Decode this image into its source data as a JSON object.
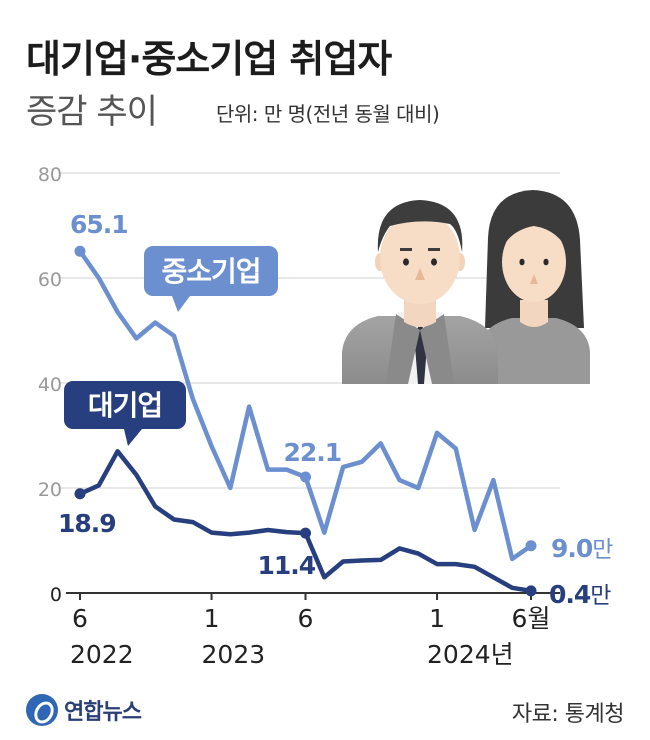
{
  "title_line1": "대기업·중소기업 취업자",
  "title_line2": "증감 추이",
  "unit": "단위: 만 명(전년 동월 대비)",
  "source": "자료: 통계청",
  "logo": "연합뉴스",
  "colors": {
    "sme": "#6b8fcf",
    "large": "#273f7e",
    "axis": "#333333",
    "grid": "#d0d0d0"
  },
  "chart_data": {
    "type": "line",
    "ylim": [
      0,
      80
    ],
    "yticks": [
      0,
      20,
      40,
      60,
      80
    ],
    "x_tick_labels": [
      {
        "index": 0,
        "month": "6",
        "year": "2022"
      },
      {
        "index": 7,
        "month": "1",
        "year": "2023"
      },
      {
        "index": 12,
        "month": "6",
        "year": ""
      },
      {
        "index": 19,
        "month": "1",
        "year": "2024년"
      },
      {
        "index": 24,
        "month": "6월",
        "year": ""
      }
    ],
    "series": [
      {
        "name": "중소기업",
        "color": "#6b8fcf",
        "values": [
          65.1,
          60,
          53.5,
          48.5,
          51.5,
          49,
          37,
          28,
          20,
          35.5,
          23.5,
          23.5,
          22.1,
          11.5,
          24,
          25,
          28.5,
          21.5,
          20,
          30.5,
          27.5,
          12,
          21.5,
          6.5,
          9.0
        ],
        "labels": [
          {
            "index": 0,
            "text": "65.1"
          },
          {
            "index": 12,
            "text": "22.1"
          },
          {
            "index": 24,
            "text": "9.0만"
          }
        ],
        "callout": "중소기업"
      },
      {
        "name": "대기업",
        "color": "#273f7e",
        "values": [
          18.9,
          20.5,
          27,
          22.5,
          16.5,
          14,
          13.5,
          11.5,
          11.2,
          11.5,
          12,
          11.6,
          11.4,
          3,
          6,
          6.2,
          6.3,
          8.5,
          7.5,
          5.5,
          5.5,
          5,
          3,
          1,
          0.4
        ],
        "labels": [
          {
            "index": 0,
            "text": "18.9"
          },
          {
            "index": 12,
            "text": "11.4"
          },
          {
            "index": 24,
            "text": "0.4만"
          }
        ],
        "callout": "대기업"
      }
    ]
  }
}
